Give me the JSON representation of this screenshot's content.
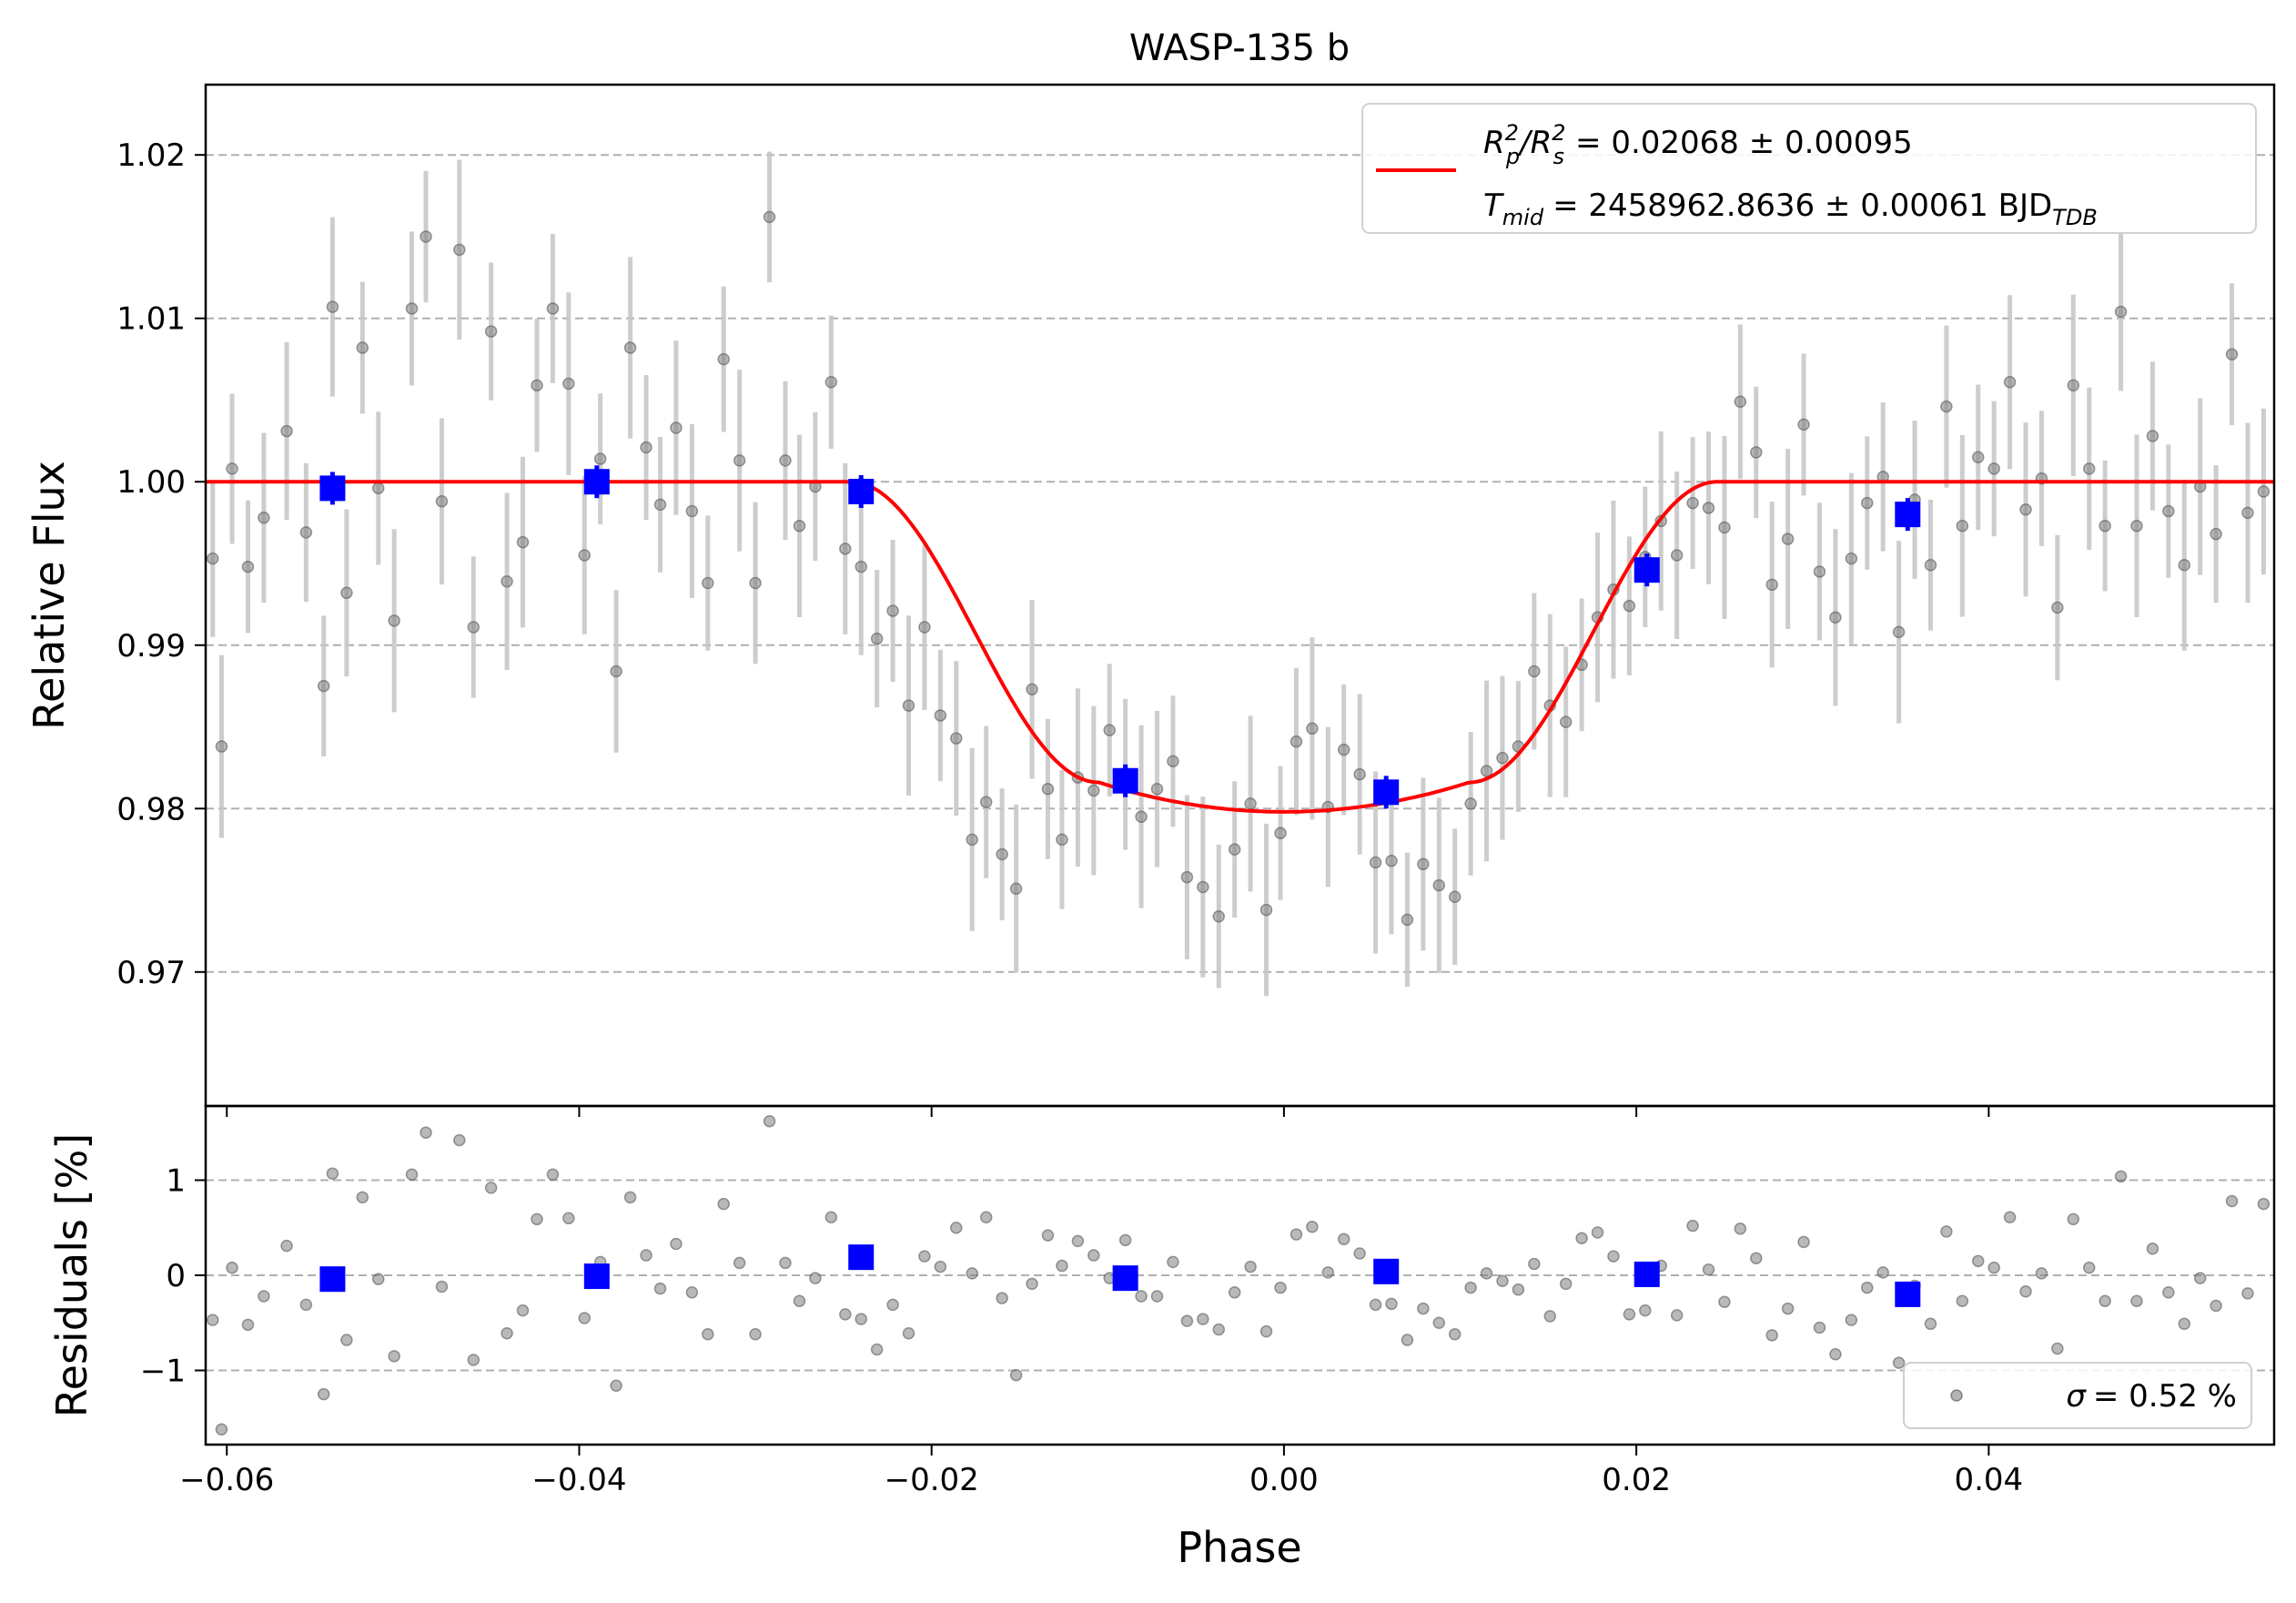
{
  "chart_data": [
    {
      "type": "scatter",
      "title": "WASP-135 b",
      "xlabel": "Phase",
      "ylabel": "Relative Flux",
      "xlim": [
        -0.0612,
        0.0562
      ],
      "ylim": [
        0.9618,
        1.0243
      ],
      "grid": "horizontal dashed",
      "xticks": [
        "−0.06",
        "−0.04",
        "−0.02",
        "0.00",
        "0.02",
        "0.04"
      ],
      "yticks": [
        "0.97",
        "0.98",
        "0.99",
        "1.00",
        "1.01",
        "1.02"
      ],
      "legend": {
        "placement": "top-right",
        "line1": {
          "prefix": "R",
          "sub1": "p",
          "sup1": "2",
          "sep": "/R",
          "sub2": "s",
          "sup2": "2",
          "value": "= 0.02068 ± 0.00095"
        },
        "line2": {
          "prefix": "T",
          "sub": "mid",
          "value": "= 2458962.8636 ± 0.00061 BJD",
          "unit_sub": "TDB"
        }
      },
      "colors": {
        "model": "#ff0000",
        "binned": "#0000ff",
        "raw": "#808080",
        "errorbar": "#c8c8c8",
        "grid": "#b0b0b0"
      },
      "model": {
        "name": "transit model",
        "baseline": 1.0,
        "depth_flux": 0.9798,
        "t1": -0.0246,
        "t2": -0.0105,
        "t3": 0.0105,
        "t4": 0.0246
      },
      "binned": {
        "x": [
          -0.054,
          -0.039,
          -0.024,
          -0.009,
          0.0058,
          0.0206,
          0.0354
        ],
        "y": [
          0.9996,
          1.0,
          0.9994,
          0.9817,
          0.981,
          0.9946,
          0.998
        ]
      },
      "raw_sample": {
        "x": [
          -0.0608,
          -0.0603,
          -0.0597,
          -0.0588,
          -0.0579,
          -0.0566,
          -0.0555,
          -0.0545,
          -0.054,
          -0.0532,
          -0.0523,
          -0.0514,
          -0.0505,
          -0.0495,
          -0.0487,
          -0.0478,
          -0.0468,
          -0.046,
          -0.045,
          -0.0441,
          -0.0432,
          -0.0424,
          -0.0415,
          -0.0406,
          -0.0397,
          -0.0388,
          -0.0379,
          -0.0371,
          -0.0362,
          -0.0354,
          -0.0345,
          -0.0336,
          -0.0327,
          -0.0318,
          -0.0309,
          -0.03,
          -0.0292,
          -0.0283,
          -0.0275,
          -0.0266,
          -0.0257,
          -0.0249,
          -0.024,
          -0.0231,
          -0.0222,
          -0.0213,
          -0.0204,
          -0.0195,
          -0.0186,
          -0.0177,
          -0.0169,
          -0.016,
          -0.0152,
          -0.0143,
          -0.0134,
          -0.0126,
          -0.0117,
          -0.0108,
          -0.0099,
          -0.009,
          -0.0081,
          -0.0072,
          -0.0063,
          -0.0055,
          -0.0046,
          -0.0037,
          -0.0028,
          -0.0019,
          -0.001,
          -0.0002,
          0.0007,
          0.0016,
          0.0025,
          0.0034,
          0.0043,
          0.0052,
          0.0061,
          0.007,
          0.0079,
          0.0088,
          0.0097,
          0.0106,
          0.0115,
          0.0124,
          0.0133,
          0.0142,
          0.0151,
          0.016,
          0.0169,
          0.0178,
          0.0187,
          0.0196,
          0.0205,
          0.0214,
          0.0223,
          0.0232,
          0.0241,
          0.025,
          0.0259,
          0.0268,
          0.0277,
          0.0286,
          0.0295,
          0.0304,
          0.0313,
          0.0322,
          0.0331,
          0.034,
          0.0349,
          0.0358,
          0.0367,
          0.0376,
          0.0385,
          0.0394,
          0.0403,
          0.0412,
          0.0421,
          0.043,
          0.0439,
          0.0448,
          0.0457,
          0.0466,
          0.0475,
          0.0484,
          0.0493,
          0.0502,
          0.0511,
          0.052,
          0.0529,
          0.0538,
          0.0547,
          0.0556
        ],
        "y": [
          0.9953,
          0.9838,
          1.0008,
          0.9948,
          0.9978,
          1.0031,
          0.9969,
          0.9875,
          1.0107,
          0.9932,
          1.0082,
          0.9996,
          0.9915,
          1.0106,
          1.015,
          0.9988,
          1.0142,
          0.9911,
          1.0092,
          0.9939,
          0.9963,
          1.0059,
          1.0106,
          1.006,
          0.9955,
          1.0014,
          0.9884,
          1.0082,
          1.0021,
          0.9986,
          1.0033,
          0.9982,
          0.9938,
          1.0075,
          1.0013,
          0.9938,
          1.0162,
          1.0013,
          0.9973,
          0.9997,
          1.0061,
          0.9959,
          0.9948,
          0.9904,
          0.9921,
          0.9863,
          0.9911,
          0.9857,
          0.9843,
          0.9781,
          0.9804,
          0.9772,
          0.9751,
          0.9873,
          0.9812,
          0.9781,
          0.9819,
          0.9811,
          0.9848,
          0.9821,
          0.9795,
          0.9812,
          0.9829,
          0.9758,
          0.9752,
          0.9734,
          0.9775,
          0.9803,
          0.9738,
          0.9785,
          0.9841,
          0.9849,
          0.9801,
          0.9836,
          0.9821,
          0.9767,
          0.9768,
          0.9732,
          0.9766,
          0.9753,
          0.9746,
          0.9803,
          0.9823,
          0.9831,
          0.9838,
          0.9884,
          0.9863,
          0.9853,
          0.9888,
          0.9917,
          0.9934,
          0.9924,
          0.9954,
          0.9976,
          0.9955,
          0.9987,
          0.9984,
          0.9972,
          1.0049,
          1.0018,
          0.9937,
          0.9965,
          1.0035,
          0.9945,
          0.9917,
          0.9953,
          0.9987,
          1.0003,
          0.9908,
          0.9989,
          0.9949,
          1.0046,
          0.9973,
          1.0015,
          1.0008,
          1.0061,
          0.9983,
          1.0002,
          0.9923,
          1.0059,
          1.0008,
          0.9973,
          1.0104,
          0.9973,
          1.0028,
          0.9982,
          0.9949,
          0.9997,
          0.9968,
          1.0078,
          0.9981,
          0.9994
        ]
      }
    },
    {
      "type": "scatter",
      "xlabel": "Phase",
      "ylabel": "Residuals [%]",
      "xlim": [
        -0.0612,
        0.0562
      ],
      "ylim": [
        -1.78,
        1.78
      ],
      "grid": "horizontal dashed",
      "yticks": [
        "−1",
        "0",
        "1"
      ],
      "legend": {
        "placement": "bottom-right",
        "symbol": "σ",
        "text": "= 0.52 %"
      },
      "binned": {
        "x": [
          -0.054,
          -0.039,
          -0.024,
          -0.009,
          0.0058,
          0.0206,
          0.0354
        ],
        "y": [
          -0.04,
          -0.01,
          0.19,
          -0.03,
          0.04,
          0.01,
          -0.2
        ]
      },
      "raw_sample": {
        "x": [
          -0.0608,
          -0.0603,
          -0.0597,
          -0.0588,
          -0.0579,
          -0.0566,
          -0.0555,
          -0.0545,
          -0.054,
          -0.0532,
          -0.0523,
          -0.0514,
          -0.0505,
          -0.0495,
          -0.0487,
          -0.0478,
          -0.0468,
          -0.046,
          -0.045,
          -0.0441,
          -0.0432,
          -0.0424,
          -0.0415,
          -0.0406,
          -0.0397,
          -0.0388,
          -0.0379,
          -0.0371,
          -0.0362,
          -0.0354,
          -0.0345,
          -0.0336,
          -0.0327,
          -0.0318,
          -0.0309,
          -0.03,
          -0.0292,
          -0.0283,
          -0.0275,
          -0.0266,
          -0.0257,
          -0.0249,
          -0.024,
          -0.0231,
          -0.0222,
          -0.0213,
          -0.0204,
          -0.0195,
          -0.0186,
          -0.0177,
          -0.0169,
          -0.016,
          -0.0152,
          -0.0143,
          -0.0134,
          -0.0126,
          -0.0117,
          -0.0108,
          -0.0099,
          -0.009,
          -0.0081,
          -0.0072,
          -0.0063,
          -0.0055,
          -0.0046,
          -0.0037,
          -0.0028,
          -0.0019,
          -0.001,
          -0.0002,
          0.0007,
          0.0016,
          0.0025,
          0.0034,
          0.0043,
          0.0052,
          0.0061,
          0.007,
          0.0079,
          0.0088,
          0.0097,
          0.0106,
          0.0115,
          0.0124,
          0.0133,
          0.0142,
          0.0151,
          0.016,
          0.0169,
          0.0178,
          0.0187,
          0.0196,
          0.0205,
          0.0214,
          0.0223,
          0.0232,
          0.0241,
          0.025,
          0.0259,
          0.0268,
          0.0277,
          0.0286,
          0.0295,
          0.0304,
          0.0313,
          0.0322,
          0.0331,
          0.034,
          0.0349,
          0.0358,
          0.0367,
          0.0376,
          0.0385,
          0.0394,
          0.0403,
          0.0412,
          0.0421,
          0.043,
          0.0439,
          0.0448,
          0.0457,
          0.0466,
          0.0475,
          0.0484,
          0.0493,
          0.0502,
          0.0511,
          0.052,
          0.0529,
          0.0538,
          0.0547,
          0.0556
        ],
        "y": [
          -0.47,
          -1.62,
          0.08,
          -0.52,
          -0.22,
          0.31,
          -0.31,
          -1.25,
          1.07,
          -0.68,
          0.82,
          -0.04,
          -0.85,
          1.06,
          1.5,
          -0.12,
          1.42,
          -0.89,
          0.92,
          -0.61,
          -0.37,
          0.59,
          1.06,
          0.6,
          -0.45,
          0.14,
          -1.16,
          0.82,
          0.21,
          -0.14,
          0.33,
          -0.18,
          -0.62,
          0.75,
          0.13,
          -0.62,
          1.62,
          0.13,
          -0.27,
          -0.03,
          0.61,
          -0.41,
          -0.46,
          -0.78,
          -0.31,
          -0.61,
          0.2,
          0.09,
          0.5,
          0.02,
          0.61,
          -0.24,
          -1.05,
          -0.09,
          0.42,
          0.1,
          0.36,
          0.21,
          -0.03,
          0.37,
          -0.22,
          -0.22,
          0.14,
          -0.48,
          -0.46,
          -0.57,
          -0.18,
          0.09,
          -0.59,
          -0.13,
          0.43,
          0.51,
          0.03,
          0.38,
          0.23,
          -0.31,
          -0.3,
          -0.68,
          -0.35,
          -0.5,
          -0.62,
          -0.13,
          0.02,
          -0.06,
          -0.15,
          0.12,
          -0.43,
          -0.09,
          0.39,
          0.45,
          0.2,
          -0.41,
          -0.37,
          0.1,
          -0.42,
          0.52,
          0.06,
          -0.28,
          0.49,
          0.18,
          -0.63,
          -0.35,
          0.35,
          -0.55,
          -0.83,
          -0.47,
          -0.13,
          0.03,
          -0.92,
          -0.11,
          -0.51,
          0.46,
          -0.27,
          0.15,
          0.08,
          0.61,
          -0.17,
          0.02,
          -0.77,
          0.59,
          0.08,
          -0.27,
          1.04,
          -0.27,
          0.28,
          -0.18,
          -0.51,
          -0.03,
          -0.32,
          0.78,
          -0.19,
          0.75
        ]
      }
    }
  ]
}
